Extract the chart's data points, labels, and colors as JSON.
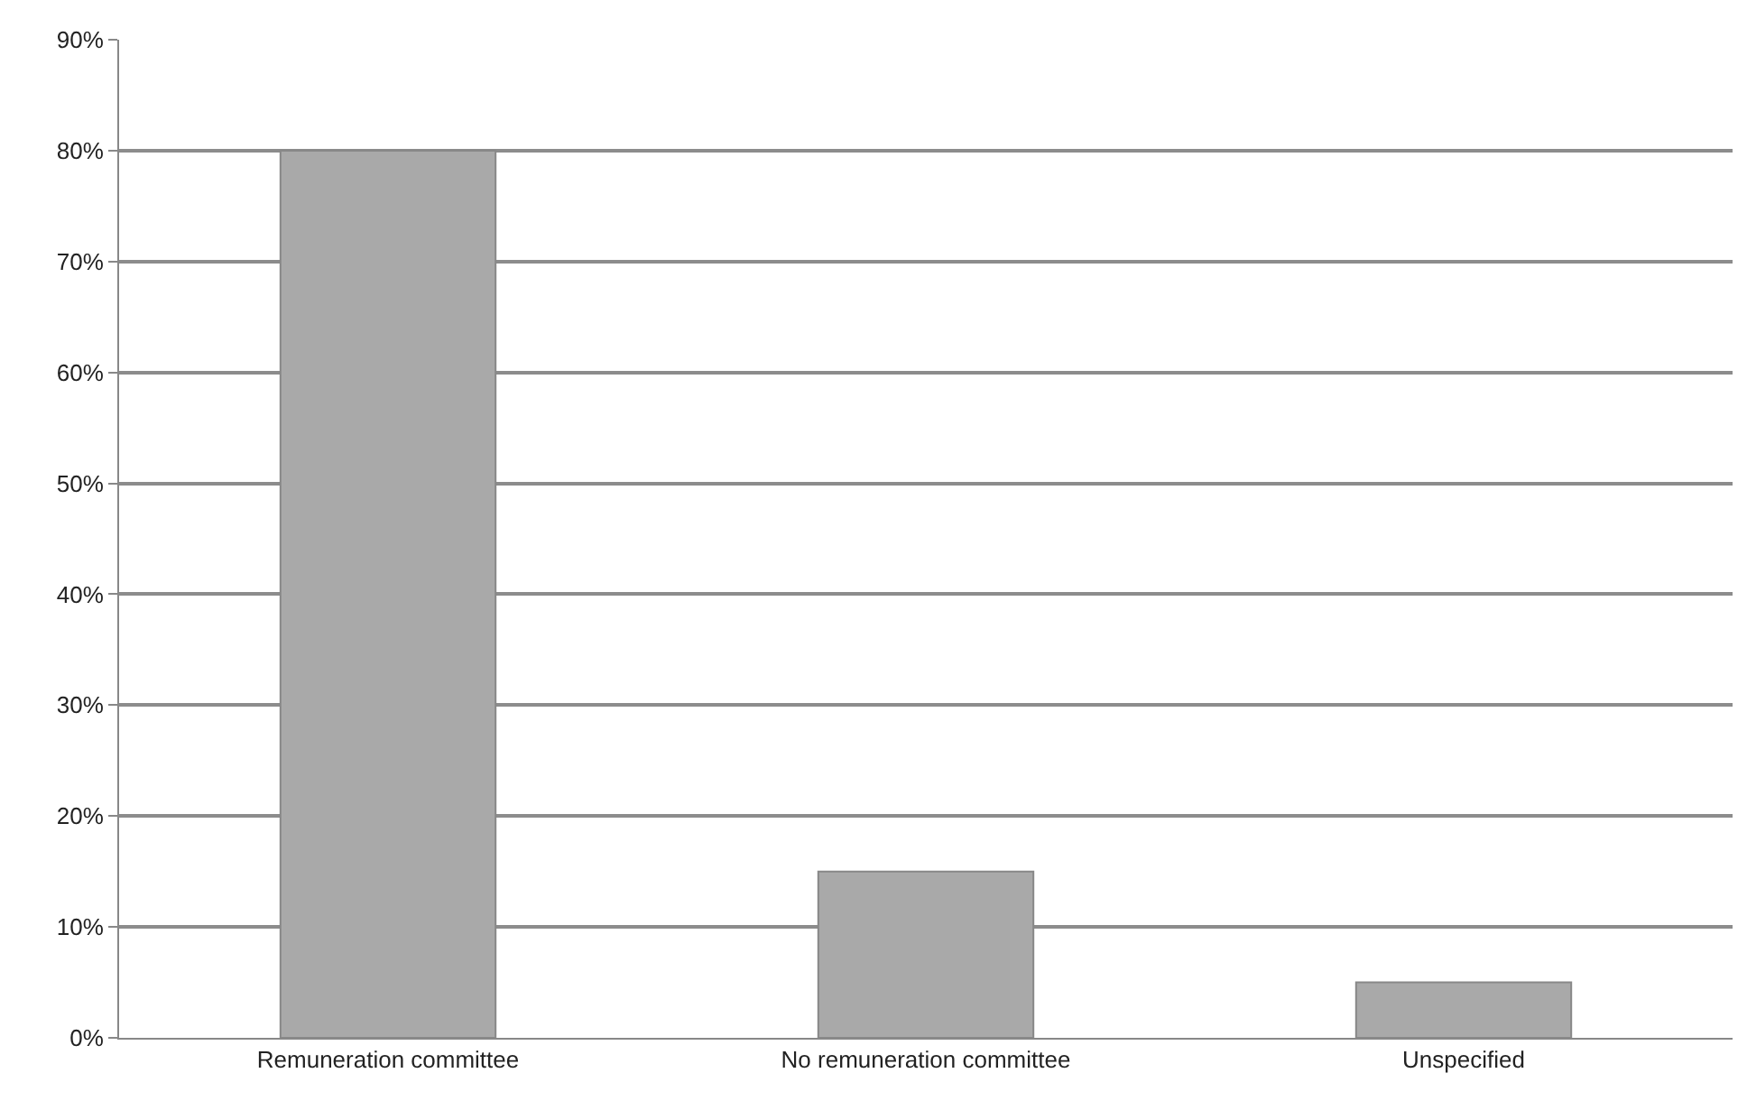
{
  "chart_data": {
    "type": "bar",
    "categories": [
      "Remuneration committee",
      "No remuneration committee",
      "Unspecified"
    ],
    "values": [
      80,
      15,
      5
    ],
    "color": "#a9a9a9",
    "ylim": [
      0,
      90
    ],
    "yticks": [
      {
        "value": 0,
        "label": "0%"
      },
      {
        "value": 10,
        "label": "10%"
      },
      {
        "value": 20,
        "label": "20%"
      },
      {
        "value": 30,
        "label": "30%"
      },
      {
        "value": 40,
        "label": "40%"
      },
      {
        "value": 50,
        "label": "50%"
      },
      {
        "value": 60,
        "label": "60%"
      },
      {
        "value": 70,
        "label": "70%"
      },
      {
        "value": 80,
        "label": "80%"
      },
      {
        "value": 90,
        "label": "90%"
      }
    ],
    "grid": "y"
  }
}
